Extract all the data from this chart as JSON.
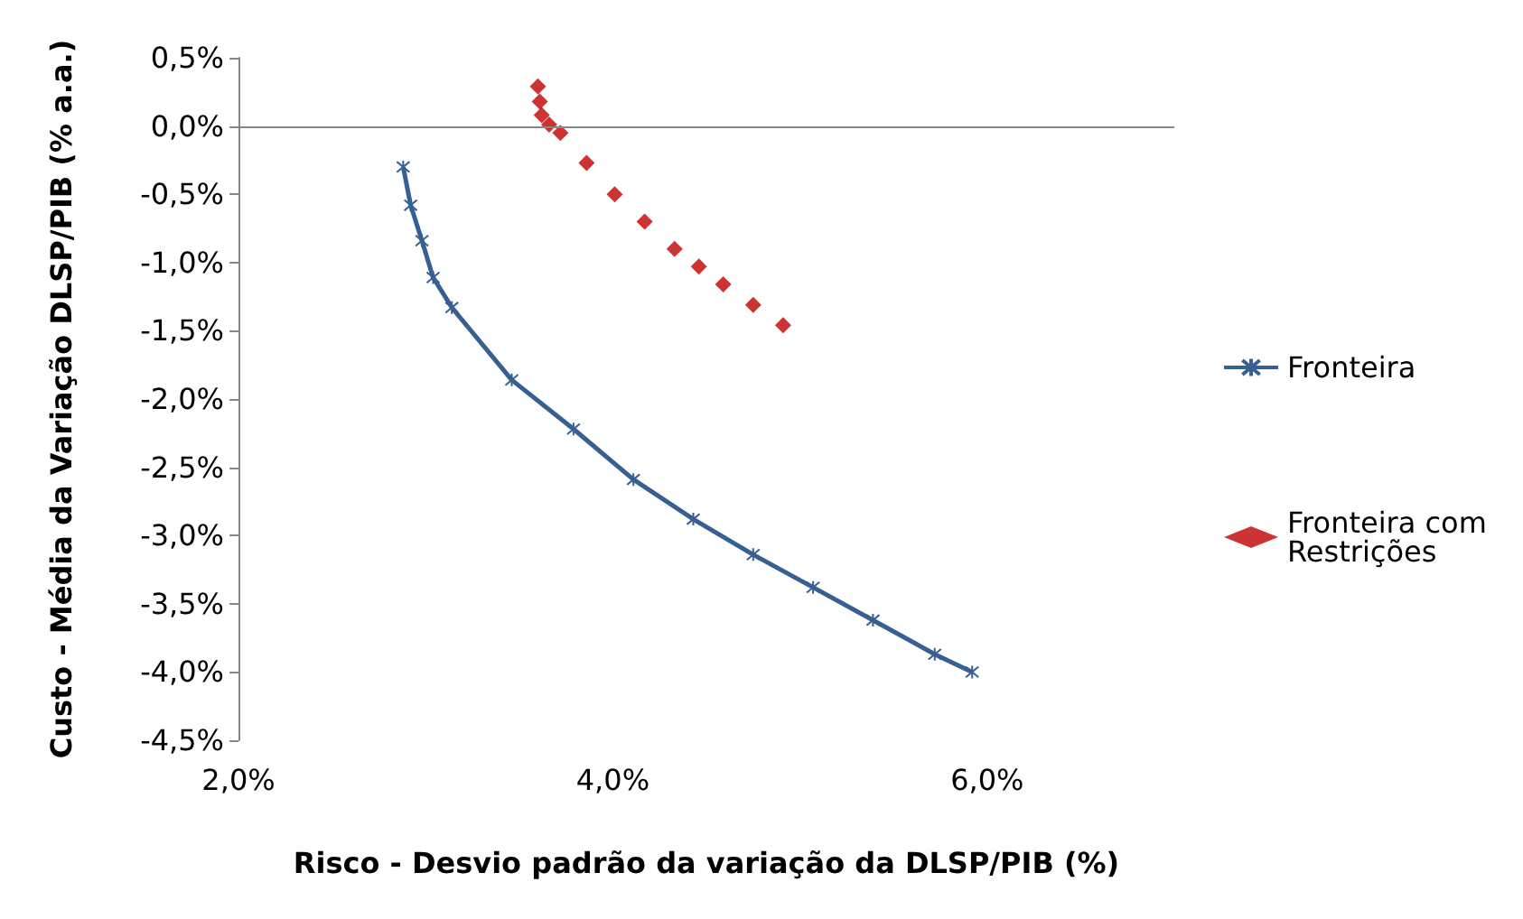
{
  "chart_data": {
    "type": "scatter",
    "xlabel": "Risco - Desvio padrão da variação da DLSP/PIB (%)",
    "ylabel": "Custo - Média da Variação DLSP/PIB (% a.a.)",
    "xlim": [
      2,
      7
    ],
    "xticks": [
      {
        "value": 2,
        "label": "2,0%"
      },
      {
        "value": 4,
        "label": "4,0%"
      },
      {
        "value": 6,
        "label": "6,0%"
      }
    ],
    "ylim": [
      -4.5,
      0.5
    ],
    "yticks": [
      {
        "value": 0.5,
        "label": "0,5%"
      },
      {
        "value": 0,
        "label": "0,0%"
      },
      {
        "value": -0.5,
        "label": "-0,5%"
      },
      {
        "value": -1,
        "label": "-1,0%"
      },
      {
        "value": -1.5,
        "label": "-1,5%"
      },
      {
        "value": -2,
        "label": "-2,0%"
      },
      {
        "value": -2.5,
        "label": "-2,5%"
      },
      {
        "value": -3,
        "label": "-3,0%"
      },
      {
        "value": -3.5,
        "label": "-3,5%"
      },
      {
        "value": -4,
        "label": "-4,0%"
      },
      {
        "value": -4.5,
        "label": "-4,5%"
      }
    ],
    "grid": false,
    "legend": "right",
    "ref_lines": [
      {
        "axis": "y",
        "value": 0,
        "color": "#868686"
      }
    ],
    "series": [
      {
        "name": "Fronteira",
        "type": "line",
        "marker": "cross",
        "color": "#376092",
        "x": [
          2.88,
          2.92,
          2.98,
          3.04,
          3.14,
          3.46,
          3.79,
          4.11,
          4.43,
          4.75,
          5.07,
          5.39,
          5.72,
          5.92
        ],
        "values": [
          -0.3,
          -0.58,
          -0.84,
          -1.11,
          -1.33,
          -1.86,
          -2.22,
          -2.59,
          -2.88,
          -3.14,
          -3.38,
          -3.62,
          -3.87,
          -4.0
        ]
      },
      {
        "name": "Fronteira com Restrições",
        "marker": "diamond",
        "color": "#c00000",
        "x": [
          3.6,
          3.61,
          3.62,
          3.66,
          3.72,
          3.86,
          4.01,
          4.17,
          4.33,
          4.46,
          4.59,
          4.75,
          4.91
        ],
        "values": [
          0.29,
          0.18,
          0.08,
          0.01,
          -0.05,
          -0.27,
          -0.5,
          -0.7,
          -0.9,
          -1.03,
          -1.16,
          -1.31,
          -1.46
        ]
      }
    ]
  }
}
